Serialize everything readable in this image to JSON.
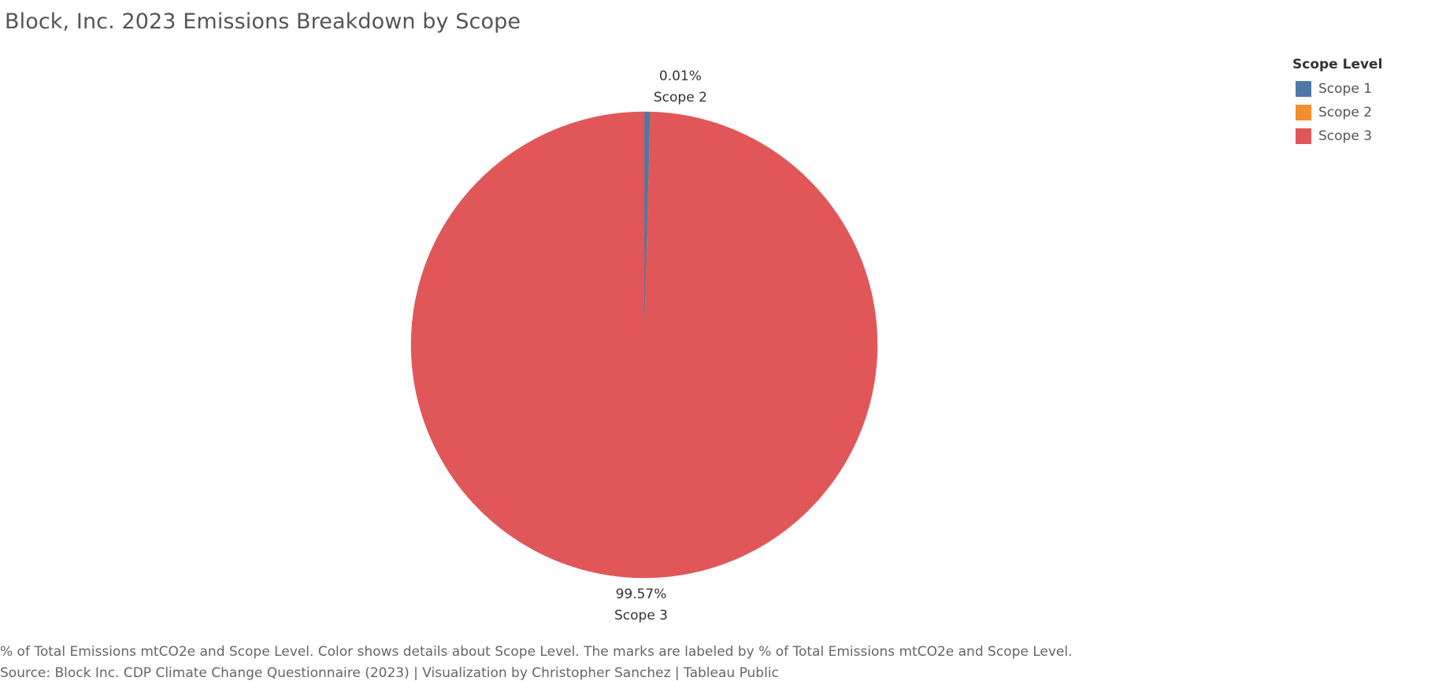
{
  "title": "Block, Inc. 2023 Emissions Breakdown by Scope",
  "legend": {
    "title": "Scope Level",
    "items": [
      {
        "label": "Scope 1",
        "color": "#4e79a7"
      },
      {
        "label": "Scope 2",
        "color": "#f28e2b"
      },
      {
        "label": "Scope 3",
        "color": "#e15759"
      }
    ]
  },
  "chart_data": {
    "type": "pie",
    "title": "Block, Inc. 2023 Emissions Breakdown by Scope",
    "categories": [
      "Scope 1",
      "Scope 2",
      "Scope 3"
    ],
    "values": [
      0.42,
      0.01,
      99.57
    ],
    "unit": "% of Total Emissions mtCO2e",
    "colors": [
      "#4e79a7",
      "#f28e2b",
      "#e15759"
    ],
    "labels": [
      {
        "category": "Scope 2",
        "percent_text": "0.01%"
      },
      {
        "category": "Scope 3",
        "percent_text": "99.57%"
      }
    ],
    "legend_position": "top-right"
  },
  "footer": {
    "caption": "% of Total Emissions mtCO2e and Scope Level.  Color shows details about Scope Level.  The marks are labeled by % of Total Emissions mtCO2e and Scope Level.",
    "source": "Source: Block Inc. CDP Climate Change Questionnaire (2023) | Visualization by Christopher Sanchez | Tableau Public"
  }
}
